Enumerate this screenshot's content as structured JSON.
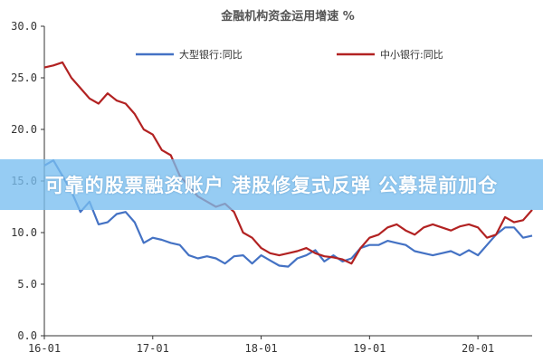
{
  "chart_data": {
    "type": "line",
    "title": "金融机构资金运用增速 %",
    "xlabel": "",
    "ylabel": "",
    "ylim": [
      0,
      30
    ],
    "y_ticks": [
      "0.0",
      "5.0",
      "10.0",
      "15.0",
      "20.0",
      "25.0",
      "30.0"
    ],
    "x_ticks": [
      "16-01",
      "17-01",
      "18-01",
      "19-01",
      "20-01"
    ],
    "x_range": [
      0,
      54
    ],
    "grid": false,
    "legend": "top",
    "series": [
      {
        "name": "大型银行:同比",
        "color": "#4472c4",
        "x": [
          0,
          1,
          2,
          3,
          4,
          5,
          6,
          7,
          8,
          9,
          10,
          11,
          12,
          13,
          14,
          15,
          16,
          17,
          18,
          19,
          20,
          21,
          22,
          23,
          24,
          25,
          26,
          27,
          28,
          29,
          30,
          31,
          32,
          33,
          34,
          35,
          36,
          37,
          38,
          39,
          40,
          41,
          42,
          43,
          44,
          45,
          46,
          47,
          48,
          49,
          50,
          51,
          52,
          53,
          54
        ],
        "values": [
          16.5,
          17.0,
          15.5,
          14.0,
          12.0,
          13.0,
          10.8,
          11.0,
          11.8,
          12.0,
          11.0,
          9.0,
          9.5,
          9.3,
          9.0,
          8.8,
          7.8,
          7.5,
          7.7,
          7.5,
          7.0,
          7.7,
          7.8,
          7.0,
          7.8,
          7.3,
          6.8,
          6.7,
          7.5,
          7.8,
          8.3,
          7.2,
          7.8,
          7.2,
          7.5,
          8.5,
          8.8,
          8.8,
          9.2,
          9.0,
          8.8,
          8.2,
          8.0,
          7.8,
          8.0,
          8.2,
          7.8,
          8.3,
          7.8,
          8.8,
          9.8,
          10.5,
          10.5,
          9.5,
          9.7
        ]
      },
      {
        "name": "中小银行:同比",
        "color": "#b22222",
        "x": [
          0,
          1,
          2,
          3,
          4,
          5,
          6,
          7,
          8,
          9,
          10,
          11,
          12,
          13,
          14,
          15,
          16,
          17,
          18,
          19,
          20,
          21,
          22,
          23,
          24,
          25,
          26,
          27,
          28,
          29,
          30,
          31,
          32,
          33,
          34,
          35,
          36,
          37,
          38,
          39,
          40,
          41,
          42,
          43,
          44,
          45,
          46,
          47,
          48,
          49,
          50,
          51,
          52,
          53,
          54
        ],
        "values": [
          26.0,
          26.2,
          26.5,
          25.0,
          24.0,
          23.0,
          22.5,
          23.5,
          22.8,
          22.5,
          21.5,
          20.0,
          19.5,
          18.0,
          17.5,
          15.5,
          14.5,
          13.5,
          13.0,
          12.5,
          12.8,
          12.0,
          10.0,
          9.5,
          8.5,
          8.0,
          7.8,
          8.0,
          8.2,
          8.5,
          8.0,
          7.7,
          7.6,
          7.4,
          7.0,
          8.5,
          9.5,
          9.8,
          10.5,
          10.8,
          10.2,
          9.8,
          10.5,
          10.8,
          10.5,
          10.2,
          10.6,
          10.8,
          10.5,
          9.5,
          9.8,
          11.5,
          11.0,
          11.2,
          12.2
        ]
      }
    ]
  },
  "banner": {
    "text": "可靠的股票融资账户 港股修复式反弹 公募提前加仓"
  }
}
